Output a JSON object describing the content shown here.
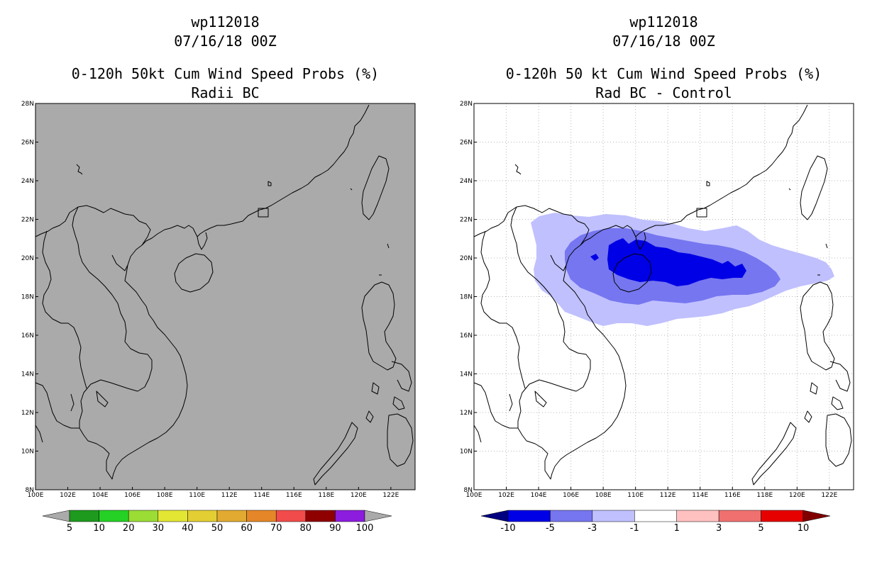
{
  "chart_data": [
    {
      "type": "heatmap",
      "title_lines": [
        "wp112018",
        "07/16/18 00Z",
        "0-120h 50kt Cum Wind Speed Probs (%)",
        "Radii BC"
      ],
      "x_ticks": [
        "100E",
        "102E",
        "104E",
        "106E",
        "108E",
        "110E",
        "112E",
        "114E",
        "116E",
        "118E",
        "120E",
        "122E"
      ],
      "y_ticks": [
        "8N",
        "10N",
        "12N",
        "14N",
        "16N",
        "18N",
        "20N",
        "22N",
        "24N",
        "26N",
        "28N"
      ],
      "xlim": [
        100,
        123.5
      ],
      "ylim": [
        8,
        28
      ],
      "grid": false,
      "field": "uniform below 5%",
      "colorbar": {
        "labels": [
          "5",
          "10",
          "20",
          "30",
          "40",
          "50",
          "60",
          "70",
          "80",
          "90",
          "100"
        ],
        "colors": [
          "#aaaaaa",
          "#1e9a1e",
          "#25d125",
          "#9bdc35",
          "#e3e633",
          "#e3cf34",
          "#e2aa31",
          "#e58728",
          "#f24b4b",
          "#8f0000",
          "#8c1cde",
          "#aaaaaa"
        ]
      }
    },
    {
      "type": "heatmap",
      "title_lines": [
        "wp112018",
        "07/16/18 00Z",
        "0-120h 50 kt Cum Wind Speed Probs (%)",
        "Rad BC - Control"
      ],
      "x_ticks": [
        "100E",
        "102E",
        "104E",
        "106E",
        "108E",
        "110E",
        "112E",
        "114E",
        "116E",
        "118E",
        "120E",
        "122E"
      ],
      "y_ticks": [
        "8N",
        "10N",
        "12N",
        "14N",
        "16N",
        "18N",
        "20N",
        "22N",
        "24N",
        "26N",
        "28N"
      ],
      "xlim": [
        100,
        123.5
      ],
      "ylim": [
        8,
        28
      ],
      "grid": true,
      "contours": [
        {
          "level": "-1 to -3",
          "color": "#c0c0ff"
        },
        {
          "level": "-3 to -5",
          "color": "#7676f0"
        },
        {
          "level": "-5 to -10",
          "color": "#0000e6"
        }
      ],
      "colorbar": {
        "labels": [
          "-10",
          "-5",
          "-3",
          "-1",
          "1",
          "3",
          "5",
          "10"
        ],
        "colors": [
          "#000080",
          "#0000e6",
          "#7676f0",
          "#c0c0ff",
          "#ffffff",
          "#ffc0c0",
          "#f07070",
          "#e60000",
          "#800000"
        ]
      }
    }
  ]
}
